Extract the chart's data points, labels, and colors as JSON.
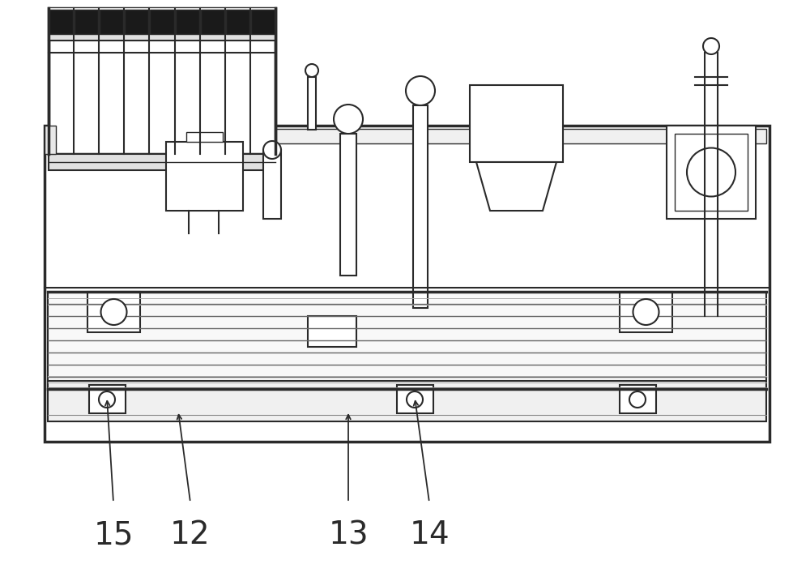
{
  "bg_color": "#ffffff",
  "line_color": "#2a2a2a",
  "font_size_labels": 28,
  "figsize": [
    10.0,
    7.12
  ],
  "dpi": 100
}
